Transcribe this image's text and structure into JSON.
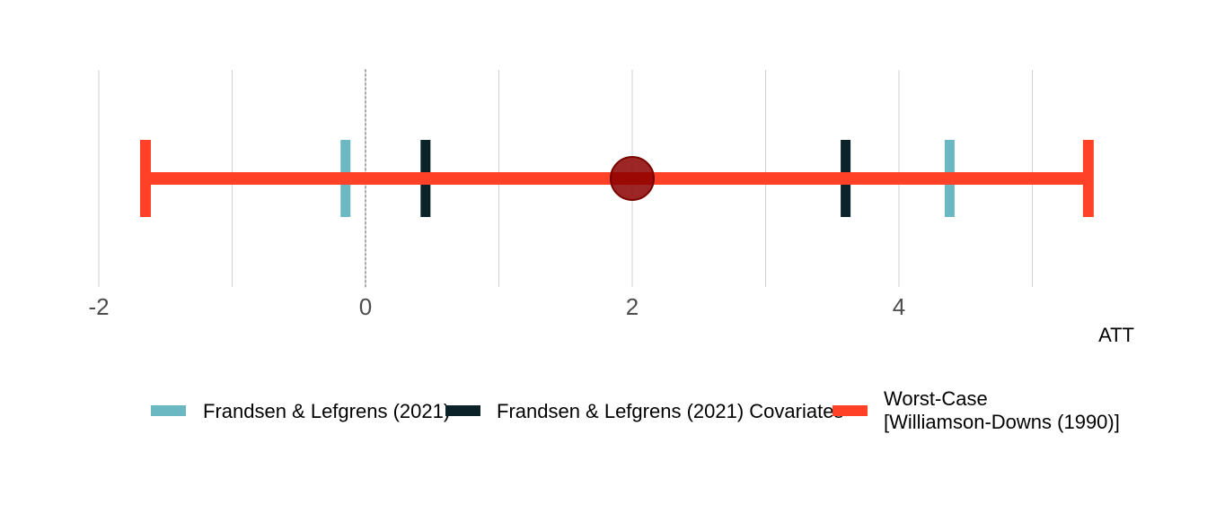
{
  "chart_data": {
    "type": "interval",
    "xlabel": "ATT",
    "xlim": [
      -2.0,
      5.5
    ],
    "x_ticks": [
      -2,
      0,
      2,
      4
    ],
    "x_tick_labels": [
      "-2",
      "0",
      "2",
      "4"
    ],
    "x_minor_gridlines": [
      -1,
      1,
      3,
      5
    ],
    "grid": true,
    "reference_line": {
      "x": 0,
      "style": "dotted"
    },
    "point_estimate": {
      "x": 2.0,
      "color": "#8b0000"
    },
    "series": [
      {
        "name": "Frandsen & Lefgrens (2021)",
        "color": "#6cb8c2",
        "lower": -0.15,
        "upper": 4.38
      },
      {
        "name": "Frandsen & Lefgrens (2021) Covariates",
        "color": "#0c2229",
        "lower": 0.45,
        "upper": 3.6
      },
      {
        "name": "Worst-Case [Williamson-Downs (1990)]",
        "legend_lines": [
          "Worst-Case",
          "[Williamson-Downs (1990)]"
        ],
        "color": "#ff4127",
        "lower": -1.65,
        "upper": 5.42
      }
    ],
    "legend_position": "bottom"
  }
}
